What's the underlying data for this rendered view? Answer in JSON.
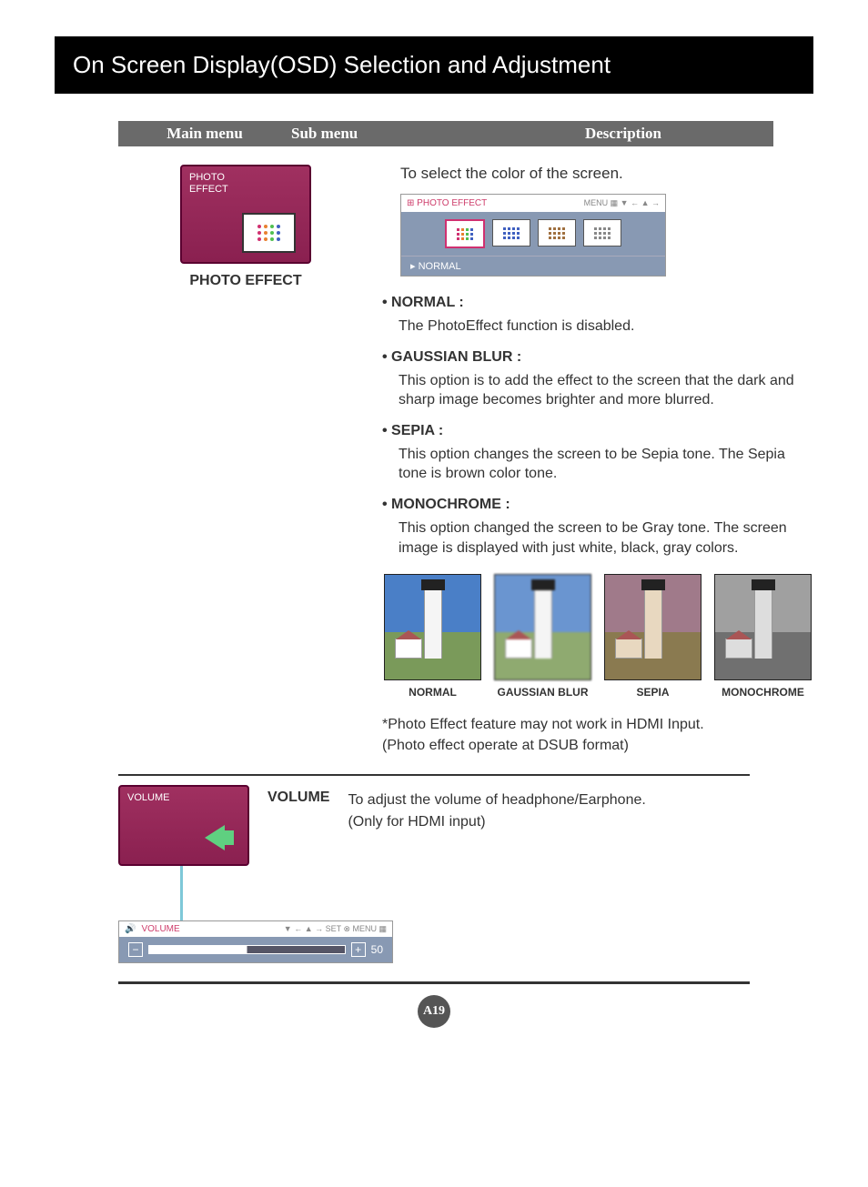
{
  "title": "On Screen Display(OSD) Selection and Adjustment",
  "header": {
    "col1": "Main menu",
    "col2": "Sub menu",
    "col3": "Description"
  },
  "photo_effect": {
    "osd_label": "PHOTO\nEFFECT",
    "main_label": "PHOTO  EFFECT",
    "intro": "To select the color of the screen.",
    "panel_title": "PHOTO  EFFECT",
    "panel_menu": "MENU ▦   ▼ ←   ▲ →",
    "panel_status": "▸   NORMAL",
    "options": [
      {
        "name": "• NORMAL :",
        "desc": "The PhotoEffect function is disabled."
      },
      {
        "name": "• GAUSSIAN BLUR :",
        "desc": "This option is to add the effect to the screen that the dark and sharp image becomes brighter and more blurred."
      },
      {
        "name": "• SEPIA :",
        "desc": "This option changes the screen to be Sepia tone. The Sepia tone is brown color tone."
      },
      {
        "name": "• MONOCHROME :",
        "desc": "This option changed the screen to be Gray tone. The screen image is displayed with just white, black, gray colors."
      }
    ],
    "thumbs": [
      {
        "label": "NORMAL",
        "sky": "#4a7fc7",
        "ground": "#7a9a5a"
      },
      {
        "label": "GAUSSIAN BLUR",
        "sky": "#6a95d0",
        "ground": "#8faa70"
      },
      {
        "label": "SEPIA",
        "sky": "#a07a8a",
        "ground": "#8a7a50"
      },
      {
        "label": "MONOCHROME",
        "sky": "#a0a0a0",
        "ground": "#707070"
      }
    ],
    "note1": "*Photo Effect feature may not work in HDMI Input.",
    "note2": "(Photo effect operate at DSUB format)"
  },
  "volume": {
    "osd_label": "VOLUME",
    "label": "VOLUME",
    "desc1": "To adjust the volume of headphone/Earphone.",
    "desc2": "(Only for HDMI input)",
    "bar_title": "VOLUME",
    "bar_nav": "▼ ←   ▲ →   SET ⊗   MENU ▦",
    "bar_value": "50"
  },
  "page_num": "A19",
  "palette": {
    "pe_dots": [
      "#d03070",
      "#e88030",
      "#50c050",
      "#4060c0",
      "#d03070",
      "#e88030",
      "#50c050",
      "#4060c0",
      "#d03070",
      "#e88030",
      "#50c050",
      "#4060c0"
    ]
  }
}
